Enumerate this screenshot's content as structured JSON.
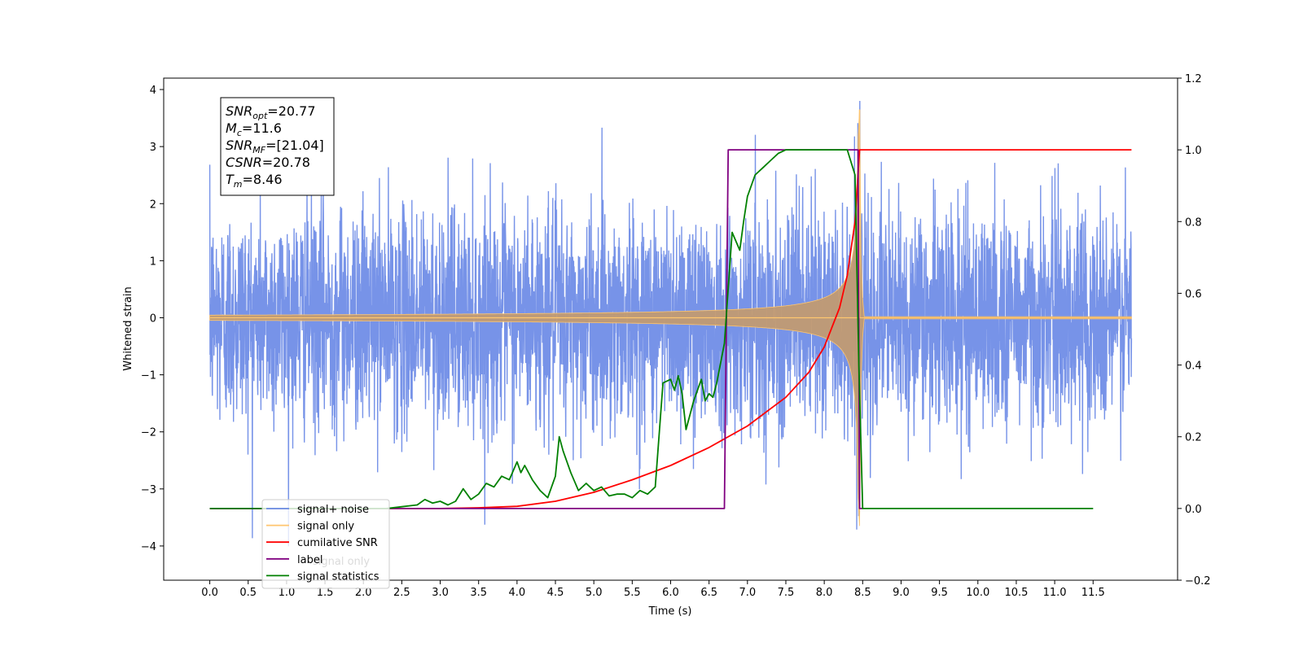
{
  "chart_data": {
    "type": "line",
    "xlabel": "Time (s)",
    "ylabel": "Whitened strain",
    "xlim": [
      -0.6,
      12.6
    ],
    "ylim": [
      -4.6,
      4.2
    ],
    "y2lim": [
      -0.2,
      1.2
    ],
    "x_ticks": [
      "0.0",
      "0.5",
      "1.0",
      "1.5",
      "2.0",
      "2.5",
      "3.0",
      "3.5",
      "4.0",
      "4.5",
      "5.0",
      "5.5",
      "6.0",
      "6.5",
      "7.0",
      "7.5",
      "8.0",
      "8.5",
      "9.0",
      "9.5",
      "10.0",
      "10.5",
      "11.0",
      "11.5"
    ],
    "y_ticks": [
      "4",
      "3",
      "2",
      "1",
      "0",
      "−1",
      "−2",
      "−3",
      "−4"
    ],
    "y2_ticks": [
      "1.2",
      "1.0",
      "0.8",
      "0.6",
      "0.4",
      "0.2",
      "0.0",
      "−0.2"
    ],
    "annotation": {
      "lines": [
        {
          "symbol": "SNR",
          "sub": "opt",
          "value": "=20.77"
        },
        {
          "symbol": "M",
          "sub": "c",
          "value": "=11.6"
        },
        {
          "symbol": "SNR",
          "sub": "MF",
          "value": "=[21.04]"
        },
        {
          "symbol": "CSNR",
          "sub": "",
          "value": "=20.78"
        },
        {
          "symbol": "T",
          "sub": "m",
          "value": "=8.46"
        }
      ]
    },
    "legend": {
      "position": "lower-left",
      "entries": [
        "signal+ noise",
        "signal only",
        "cumilative SNR",
        "label",
        "signal statistics"
      ],
      "ghost_entry": "signal only"
    },
    "colors": {
      "noise": "#6b8ae6",
      "signal": "#ffc66f",
      "signal_overlap": "#c19a72",
      "csnr": "#ff0000",
      "label": "#800080",
      "stats": "#008000"
    },
    "series": [
      {
        "name": "signal+ noise",
        "axis": "left",
        "description_values": {
          "t_start": 0.0,
          "t_end": 12.0,
          "std": 0.95,
          "min": -4.1,
          "max": 3.8
        }
      },
      {
        "name": "signal only",
        "axis": "left",
        "chirp": {
          "t_start": 0.0,
          "t_merger": 8.46,
          "amp_at_1s": 0.05,
          "peak": 3.65
        }
      },
      {
        "name": "cumilative SNR",
        "axis": "right",
        "x": [
          0.0,
          2.0,
          3.0,
          3.5,
          4.0,
          4.5,
          5.0,
          5.5,
          6.0,
          6.5,
          7.0,
          7.5,
          7.8,
          8.0,
          8.2,
          8.3,
          8.4,
          8.46,
          12.0
        ],
        "y": [
          0.0,
          0.0,
          0.0,
          0.002,
          0.006,
          0.02,
          0.045,
          0.08,
          0.12,
          0.17,
          0.23,
          0.31,
          0.38,
          0.45,
          0.56,
          0.65,
          0.8,
          1.0,
          1.0
        ]
      },
      {
        "name": "label",
        "axis": "right",
        "x": [
          0.0,
          6.7,
          6.75,
          8.44,
          8.46,
          8.5
        ],
        "y": [
          0.0,
          0.0,
          1.0,
          1.0,
          0.0,
          0.0
        ]
      },
      {
        "name": "signal statistics",
        "axis": "right",
        "x": [
          0.0,
          2.3,
          2.5,
          2.7,
          2.8,
          2.9,
          3.0,
          3.1,
          3.2,
          3.3,
          3.4,
          3.5,
          3.6,
          3.7,
          3.8,
          3.9,
          4.0,
          4.05,
          4.1,
          4.2,
          4.3,
          4.4,
          4.5,
          4.55,
          4.6,
          4.7,
          4.8,
          4.9,
          5.0,
          5.1,
          5.2,
          5.3,
          5.4,
          5.5,
          5.6,
          5.7,
          5.8,
          5.9,
          6.0,
          6.05,
          6.1,
          6.15,
          6.2,
          6.3,
          6.4,
          6.45,
          6.5,
          6.55,
          6.6,
          6.7,
          6.8,
          6.9,
          6.95,
          7.0,
          7.1,
          7.2,
          7.3,
          7.4,
          7.5,
          7.6,
          7.8,
          8.0,
          8.2,
          8.3,
          8.4,
          8.45,
          8.5,
          11.5
        ],
        "y": [
          0.0,
          0.0,
          0.005,
          0.01,
          0.025,
          0.015,
          0.02,
          0.01,
          0.02,
          0.055,
          0.025,
          0.04,
          0.07,
          0.06,
          0.09,
          0.08,
          0.13,
          0.1,
          0.12,
          0.08,
          0.05,
          0.03,
          0.09,
          0.2,
          0.16,
          0.1,
          0.05,
          0.07,
          0.05,
          0.06,
          0.035,
          0.04,
          0.04,
          0.03,
          0.05,
          0.04,
          0.06,
          0.35,
          0.36,
          0.33,
          0.37,
          0.32,
          0.22,
          0.3,
          0.36,
          0.3,
          0.32,
          0.31,
          0.35,
          0.46,
          0.77,
          0.72,
          0.8,
          0.87,
          0.93,
          0.95,
          0.97,
          0.99,
          1.0,
          1.0,
          1.0,
          1.0,
          1.0,
          1.0,
          0.93,
          0.4,
          0.0,
          0.0
        ]
      }
    ]
  }
}
